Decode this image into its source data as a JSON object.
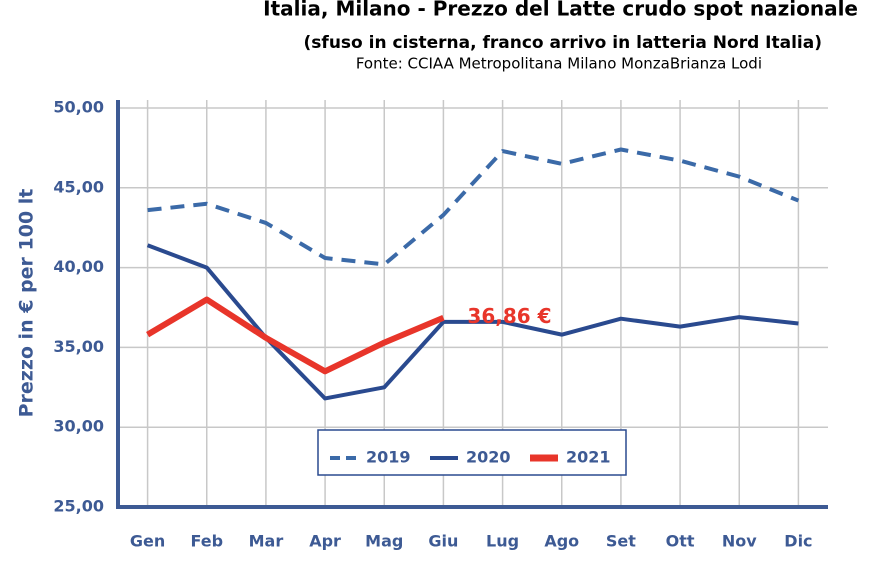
{
  "chart_data": {
    "type": "line",
    "title": "Italia, Milano - Prezzo del Latte crudo spot nazionale",
    "subtitle": "(sfuso in cisterna, franco arrivo in latteria Nord Italia)",
    "source": "Fonte: CCIAA Metropolitana Milano MonzaBrianza Lodi",
    "y_label": "Prezzo in € per 100 lt",
    "categories": [
      "Gen",
      "Feb",
      "Mar",
      "Apr",
      "Mag",
      "Giu",
      "Lug",
      "Ago",
      "Set",
      "Ott",
      "Nov",
      "Dic"
    ],
    "series": [
      {
        "name": "2019",
        "color": "#3b6aa8",
        "dashed": true,
        "values": [
          43.6,
          44.0,
          42.8,
          40.6,
          40.2,
          43.3,
          47.3,
          46.5,
          47.4,
          46.7,
          45.7,
          44.2
        ]
      },
      {
        "name": "2020",
        "color": "#2a4a8f",
        "dashed": false,
        "values": [
          41.4,
          40.0,
          35.6,
          31.8,
          32.5,
          36.6,
          36.6,
          35.8,
          36.8,
          36.3,
          36.9,
          36.5
        ]
      },
      {
        "name": "2021",
        "color": "#e8352a",
        "dashed": false,
        "values": [
          35.8,
          38.0,
          35.6,
          33.5,
          35.3,
          36.86,
          null,
          null,
          null,
          null,
          null,
          null
        ],
        "value_labels": [
          null,
          null,
          null,
          null,
          null,
          "36,86 €",
          null,
          null,
          null,
          null,
          null,
          null
        ]
      }
    ],
    "ylim": [
      25,
      50
    ],
    "yticks": [
      {
        "value": 25,
        "label": "25,00"
      },
      {
        "value": 30,
        "label": "30,00"
      },
      {
        "value": 35,
        "label": "35,00"
      },
      {
        "value": 40,
        "label": "40,00"
      },
      {
        "value": 45,
        "label": "45,00"
      },
      {
        "value": 50,
        "label": "50,00"
      }
    ],
    "grid": true,
    "legend": "bottom"
  }
}
